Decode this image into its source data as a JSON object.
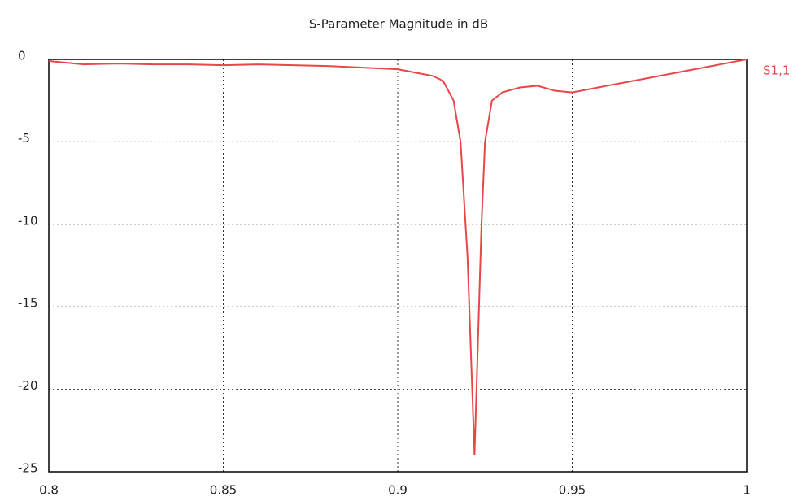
{
  "chart_data": {
    "type": "line",
    "title": "S-Parameter Magnitude in dB",
    "x": [
      0.8,
      0.81,
      0.82,
      0.83,
      0.84,
      0.85,
      0.86,
      0.87,
      0.88,
      0.89,
      0.9,
      0.905,
      0.91,
      0.913,
      0.916,
      0.918,
      0.92,
      0.921,
      0.922,
      0.923,
      0.924,
      0.925,
      0.927,
      0.93,
      0.935,
      0.94,
      0.945,
      0.95,
      0.955,
      0.96,
      0.97,
      0.98,
      0.99,
      0.995,
      1.0
    ],
    "series": [
      {
        "name": "S1,1",
        "color": "#e8474a",
        "values": [
          -0.1,
          -0.3,
          -0.25,
          -0.3,
          -0.3,
          -0.35,
          -0.3,
          -0.35,
          -0.4,
          -0.5,
          -0.6,
          -0.8,
          -1.0,
          -1.3,
          -2.5,
          -5,
          -12,
          -18,
          -24,
          -17,
          -10,
          -5,
          -2.5,
          -2.0,
          -1.7,
          -1.6,
          -1.9,
          -2.0,
          -1.8,
          -1.6,
          -1.2,
          -0.8,
          -0.4,
          -0.2,
          0
        ]
      }
    ],
    "xlim": [
      0.8,
      1
    ],
    "xticks": [
      0.8,
      0.85,
      0.9,
      0.95,
      1
    ],
    "ylim": [
      -25,
      0
    ],
    "yticks": [
      0,
      -5,
      -10,
      -15,
      -20,
      -25
    ],
    "grid": true
  }
}
